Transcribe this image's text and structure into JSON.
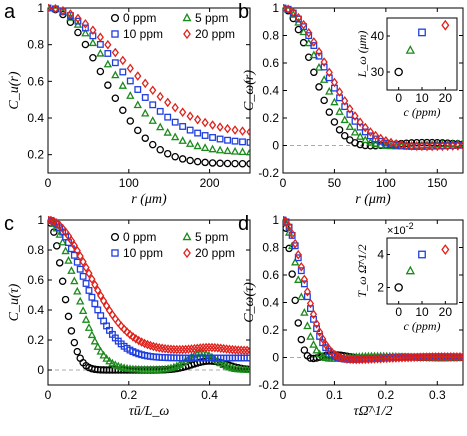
{
  "colors": {
    "0 ppm": "#000000",
    "5 ppm": "#1a8a1a",
    "10 ppm": "#1f3fe0",
    "20 ppm": "#e0201a",
    "zero_line": "#aaaaaa"
  },
  "chart_data": [
    {
      "id": "a",
      "panel_label": "a",
      "type": "scatter",
      "xlabel": "r (μm)",
      "ylabel": "C_u(r)",
      "xlim": [
        0,
        250
      ],
      "ylim": [
        0.1,
        1.0
      ],
      "xticks": [
        0,
        100,
        200
      ],
      "yticks": [
        0.2,
        0.4,
        0.6,
        0.8,
        1
      ],
      "ytick_labels": [
        "0.2",
        "0.4",
        "0.6",
        "0.8",
        "1"
      ],
      "xtick_labels": [
        "0",
        "100",
        "200"
      ],
      "zero_line": false,
      "legend": {
        "placement": "top-right",
        "entries": [
          "0 ppm",
          "5 ppm",
          "10 ppm",
          "20 ppm"
        ]
      },
      "series": [
        {
          "name": "0 ppm",
          "marker": "circle",
          "model": {
            "kind": "gauss_exp",
            "tau": 85,
            "a": 0.85,
            "b": 0.15,
            "n": 28,
            "x0": 0,
            "x1": 250
          }
        },
        {
          "name": "5 ppm",
          "marker": "triangle",
          "model": {
            "kind": "gauss_exp",
            "tau": 100,
            "a": 0.79,
            "b": 0.21,
            "n": 28,
            "x0": 0,
            "x1": 250
          }
        },
        {
          "name": "10 ppm",
          "marker": "square",
          "model": {
            "kind": "gauss_exp",
            "tau": 110,
            "a": 0.74,
            "b": 0.26,
            "n": 28,
            "x0": 0,
            "x1": 250
          }
        },
        {
          "name": "20 ppm",
          "marker": "diamond",
          "model": {
            "kind": "gauss_exp",
            "tau": 120,
            "a": 0.69,
            "b": 0.31,
            "n": 28,
            "x0": 0,
            "x1": 250
          }
        }
      ]
    },
    {
      "id": "b",
      "panel_label": "b",
      "type": "scatter",
      "xlabel": "r (μm)",
      "ylabel": "C_ω(r)",
      "xlim": [
        0,
        175
      ],
      "ylim": [
        -0.2,
        1.0
      ],
      "xticks": [
        0,
        50,
        100,
        150
      ],
      "yticks": [
        -0.2,
        0,
        0.2,
        0.4,
        0.6,
        0.8,
        1
      ],
      "ytick_labels": [
        "-0.2",
        "0",
        "0.2",
        "0.4",
        "0.6",
        "0.8",
        "1"
      ],
      "xtick_labels": [
        "0",
        "50",
        "100",
        "150"
      ],
      "zero_line": true,
      "series": [
        {
          "name": "0 ppm",
          "marker": "circle",
          "model": {
            "kind": "damped",
            "L": 30,
            "amp": 0.07,
            "w": 1.6,
            "n": 36,
            "x0": 0,
            "x1": 175
          }
        },
        {
          "name": "5 ppm",
          "marker": "triangle",
          "model": {
            "kind": "damped",
            "L": 36,
            "amp": 0.05,
            "w": 1.4,
            "n": 36,
            "x0": 0,
            "x1": 175
          }
        },
        {
          "name": "10 ppm",
          "marker": "square",
          "model": {
            "kind": "damped",
            "L": 41,
            "amp": 0.04,
            "w": 1.3,
            "n": 36,
            "x0": 0,
            "x1": 175
          }
        },
        {
          "name": "20 ppm",
          "marker": "diamond",
          "model": {
            "kind": "damped",
            "L": 43,
            "amp": 0.03,
            "w": 1.2,
            "n": 36,
            "x0": 0,
            "x1": 175
          }
        }
      ],
      "inset": {
        "xlabel": "c (ppm)",
        "ylabel": "L_ω (μm)",
        "xlim": [
          -5,
          25
        ],
        "ylim": [
          25,
          45
        ],
        "xticks": [
          0,
          10,
          20
        ],
        "yticks": [
          30,
          40
        ],
        "xtick_labels": [
          "0",
          "10",
          "20"
        ],
        "ytick_labels": [
          "30",
          "40"
        ],
        "points": [
          {
            "series": "0 ppm",
            "marker": "circle",
            "x": 0,
            "y": 30
          },
          {
            "series": "5 ppm",
            "marker": "triangle",
            "x": 5,
            "y": 36
          },
          {
            "series": "10 ppm",
            "marker": "square",
            "x": 10,
            "y": 41
          },
          {
            "series": "20 ppm",
            "marker": "diamond",
            "x": 20,
            "y": 43
          }
        ]
      }
    },
    {
      "id": "c",
      "panel_label": "c",
      "type": "scatter",
      "xlabel": "τū/L_ω",
      "ylabel": "C_u(τ)",
      "xlim": [
        0,
        0.5
      ],
      "ylim": [
        -0.1,
        1.0
      ],
      "xticks": [
        0,
        0.2,
        0.4
      ],
      "yticks": [
        0,
        0.2,
        0.4,
        0.6,
        0.8,
        1
      ],
      "ytick_labels": [
        "0",
        "0.2",
        "0.4",
        "0.6",
        "0.8",
        "1"
      ],
      "xtick_labels": [
        "0",
        "0.2",
        "0.4"
      ],
      "zero_line": true,
      "legend": {
        "placement": "top-right",
        "entries": [
          "0 ppm",
          "5 ppm",
          "10 ppm",
          "20 ppm"
        ]
      },
      "series": [
        {
          "name": "0 ppm",
          "marker": "circle",
          "model": {
            "kind": "gauss_bump",
            "tau": 0.05,
            "b": 0.0,
            "bumps": [
              {
                "c": 0.4,
                "h": 0.06,
                "s": 0.06
              }
            ],
            "n": 70,
            "x0": 0,
            "x1": 0.5
          }
        },
        {
          "name": "5 ppm",
          "marker": "triangle",
          "model": {
            "kind": "gauss_bump",
            "tau": 0.09,
            "b": 0.0,
            "bumps": [
              {
                "c": 0.38,
                "h": 0.11,
                "s": 0.05
              }
            ],
            "n": 70,
            "x0": 0,
            "x1": 0.5
          }
        },
        {
          "name": "10 ppm",
          "marker": "square",
          "model": {
            "kind": "gauss_bump",
            "tau": 0.12,
            "b": 0.08,
            "bumps": [],
            "n": 70,
            "x0": 0,
            "x1": 0.5
          }
        },
        {
          "name": "20 ppm",
          "marker": "diamond",
          "model": {
            "kind": "gauss_bump",
            "tau": 0.14,
            "b": 0.13,
            "bumps": [
              {
                "c": 0.4,
                "h": 0.02,
                "s": 0.05
              }
            ],
            "n": 70,
            "x0": 0,
            "x1": 0.5
          }
        }
      ]
    },
    {
      "id": "d",
      "panel_label": "d",
      "type": "scatter",
      "xlabel": "τΩ̄^1/2",
      "ylabel": "C_ω(τ)",
      "xlim": [
        0,
        0.35
      ],
      "ylim": [
        -0.2,
        1.0
      ],
      "xticks": [
        0,
        0.1,
        0.2,
        0.3
      ],
      "yticks": [
        -0.2,
        0,
        0.2,
        0.4,
        0.6,
        0.8,
        1
      ],
      "ytick_labels": [
        "-0.2",
        "0",
        "0.2",
        "0.4",
        "0.6",
        "0.8",
        "1"
      ],
      "xtick_labels": [
        "0",
        "0.1",
        "0.2",
        "0.3"
      ],
      "zero_line": true,
      "series": [
        {
          "name": "0 ppm",
          "marker": "circle",
          "model": {
            "kind": "damped",
            "L": 0.02,
            "amp": 0.07,
            "w": 1.5,
            "n": 60,
            "x0": 0,
            "x1": 0.35
          }
        },
        {
          "name": "5 ppm",
          "marker": "triangle",
          "model": {
            "kind": "damped",
            "L": 0.03,
            "amp": 0.04,
            "w": 1.2,
            "n": 60,
            "x0": 0,
            "x1": 0.35
          }
        },
        {
          "name": "10 ppm",
          "marker": "square",
          "model": {
            "kind": "damped",
            "L": 0.04,
            "amp": 0.04,
            "w": 0.95,
            "n": 60,
            "x0": 0,
            "x1": 0.35
          }
        },
        {
          "name": "20 ppm",
          "marker": "diamond",
          "model": {
            "kind": "damped",
            "L": 0.042,
            "amp": 0.04,
            "w": 0.9,
            "n": 60,
            "x0": 0,
            "x1": 0.35
          }
        }
      ],
      "inset": {
        "xlabel": "c (ppm)",
        "ylabel": "T_ω Ω̄^1/2",
        "exponent_label": "×10",
        "exponent_power": "-2",
        "xlim": [
          -5,
          25
        ],
        "ylim": [
          1,
          5
        ],
        "xticks": [
          0,
          10,
          20
        ],
        "yticks": [
          2,
          4
        ],
        "xtick_labels": [
          "0",
          "10",
          "20"
        ],
        "ytick_labels": [
          "2",
          "4"
        ],
        "points": [
          {
            "series": "0 ppm",
            "marker": "circle",
            "x": 0,
            "y": 2.0
          },
          {
            "series": "5 ppm",
            "marker": "triangle",
            "x": 5,
            "y": 3.0
          },
          {
            "series": "10 ppm",
            "marker": "square",
            "x": 10,
            "y": 4.0
          },
          {
            "series": "20 ppm",
            "marker": "diamond",
            "x": 20,
            "y": 4.3
          }
        ]
      }
    }
  ]
}
